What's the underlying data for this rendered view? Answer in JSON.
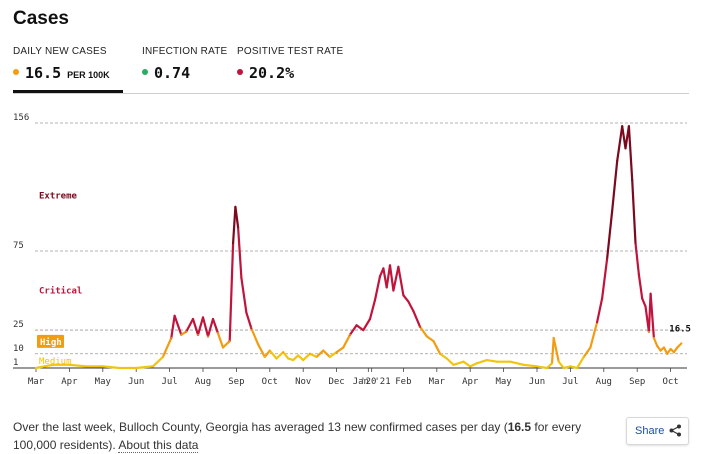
{
  "header": {
    "title": "Cases"
  },
  "tabs": [
    {
      "label": "DAILY NEW CASES",
      "value": "16.5",
      "unit": "PER 100K",
      "color": "#f39c12",
      "active": true
    },
    {
      "label": "INFECTION RATE",
      "value": "0.74",
      "color": "#27ae60",
      "active": false
    },
    {
      "label": "POSITIVE TEST RATE",
      "value": "20.2%",
      "color": "#c0143c",
      "active": false
    }
  ],
  "summary": {
    "text_before": "Over the last week, Bulloch County, Georgia has averaged 13 new confirmed cases per day (",
    "bold_value": "16.5",
    "text_after": " for every 100,000 residents). ",
    "link": "About this data"
  },
  "share": {
    "label": "Share"
  },
  "colors": {
    "low": "#2eaa4a",
    "medium": "#f1c40f",
    "high": "#f39c12",
    "critical": "#c0143c",
    "extreme": "#7b0a1e",
    "grid": "#9a9a9a"
  },
  "chart_data": {
    "type": "line",
    "title": "",
    "xlabel": "",
    "ylabel": "",
    "ylim": [
      0,
      160
    ],
    "yticks": [
      1,
      10,
      25,
      75,
      156
    ],
    "y_tick_labels": [
      "1",
      "10",
      "25",
      "75",
      "156"
    ],
    "x_tick_labels": [
      "Mar",
      "Apr",
      "May",
      "Jun",
      "Jul",
      "Aug",
      "Sep",
      "Oct",
      "Nov",
      "Dec",
      "'20",
      "Jan '21",
      "Feb",
      "Mar",
      "Apr",
      "May",
      "Jun",
      "Jul",
      "Aug",
      "Sep",
      "Oct"
    ],
    "x_tick_months": [
      0,
      1,
      2,
      3,
      4,
      5,
      6,
      7,
      8,
      9,
      9.95,
      10.05,
      11,
      12,
      13,
      14,
      15,
      16,
      17,
      18,
      19
    ],
    "risk_levels": [
      {
        "label": "Extreme",
        "y": 110,
        "style": "text"
      },
      {
        "label": "Critical",
        "y": 50,
        "style": "text"
      },
      {
        "label": "High",
        "y": 17.5,
        "style": "badge"
      },
      {
        "label": "Medium",
        "y": 5.5,
        "style": "text"
      }
    ],
    "end_label": "16.5",
    "series": [
      {
        "months": [
          0,
          0.5,
          1.0,
          1.5,
          2.0,
          2.5,
          3.0,
          3.5,
          3.8,
          4.05,
          4.15,
          4.35,
          4.5,
          4.7,
          4.85,
          5.0,
          5.15,
          5.3,
          5.45,
          5.6,
          5.8,
          5.9,
          5.97,
          6.05,
          6.15,
          6.3,
          6.45,
          6.65,
          6.85,
          7.0,
          7.2,
          7.4,
          7.55,
          7.7,
          7.85,
          8.0,
          8.2,
          8.4,
          8.6,
          8.8,
          9.0,
          9.2,
          9.4,
          9.6,
          9.8,
          10.0,
          10.15,
          10.3,
          10.4,
          10.5,
          10.6,
          10.7,
          10.85,
          11.0,
          11.15,
          11.3,
          11.5,
          11.7,
          11.9,
          12.1,
          12.3,
          12.5,
          12.8,
          13.0,
          13.2,
          13.5,
          13.8,
          14.2,
          14.6,
          15.0,
          15.3,
          15.45,
          15.5,
          15.65,
          15.8,
          16.0,
          16.2,
          16.4,
          16.6,
          16.8,
          16.95,
          17.1,
          17.25,
          17.4,
          17.55,
          17.65,
          17.75,
          17.85,
          17.95,
          18.05,
          18.15,
          18.25,
          18.35,
          18.4,
          18.5,
          18.6,
          18.7,
          18.8,
          18.9,
          19.0,
          19.1,
          19.2,
          19.32
        ],
        "values": [
          1,
          3,
          3,
          2,
          2,
          1,
          1,
          2,
          8,
          20,
          34,
          22,
          24,
          32,
          22,
          33,
          21,
          32,
          23,
          14,
          18,
          80,
          103,
          90,
          58,
          36,
          26,
          16,
          8,
          12,
          7,
          11,
          7,
          6,
          9,
          6,
          10,
          8,
          12,
          8,
          11,
          14,
          22,
          28,
          25,
          32,
          44,
          59,
          64,
          52,
          66,
          50,
          65,
          47,
          43,
          37,
          27,
          21,
          18,
          10,
          7,
          3,
          5,
          2,
          4,
          6,
          5,
          5,
          3,
          2,
          1,
          4,
          20,
          5,
          1,
          2,
          1,
          8,
          14,
          30,
          45,
          70,
          100,
          132,
          154,
          140,
          154,
          120,
          80,
          60,
          45,
          40,
          24,
          48,
          20,
          15,
          12,
          14,
          10,
          13,
          11,
          14,
          16.5
        ]
      }
    ]
  }
}
